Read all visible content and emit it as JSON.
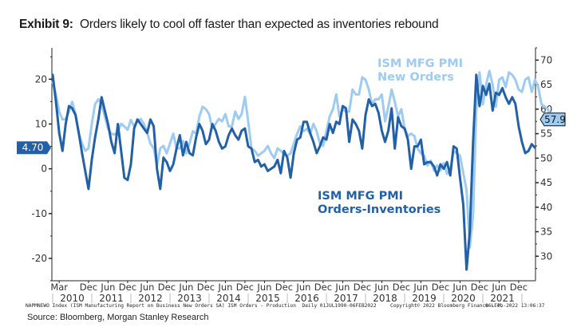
{
  "header": {
    "exhibit_label": "Exhibit 9:",
    "title": "Orders likely to cool off faster than expected as inventories rebound"
  },
  "chart_data": {
    "type": "line",
    "title": "Orders likely to cool off faster than expected as inventories rebound",
    "x_start": "2010-01",
    "x_end": "2022-01",
    "frequency": "monthly",
    "left_axis": {
      "ticks": [
        -20,
        -10,
        0,
        10,
        20
      ],
      "ylim": [
        -25,
        27
      ]
    },
    "right_axis": {
      "ticks": [
        30,
        35,
        40,
        45,
        50,
        55,
        60,
        65,
        70
      ],
      "ylim": [
        25,
        72.5
      ]
    },
    "x_tick_labels": [
      "Mar",
      "Dec",
      "Jun",
      "Dec",
      "Jun",
      "Dec",
      "Jun",
      "Dec",
      "Jun",
      "Dec",
      "Jun",
      "Dec",
      "Jun",
      "Dec",
      "Jun",
      "Dec",
      "Jun",
      "Dec",
      "Jun",
      "Dec",
      "Jun",
      "Dec",
      "Jun",
      "Dec"
    ],
    "year_labels": [
      "2010",
      "2011",
      "2012",
      "2013",
      "2014",
      "2015",
      "2016",
      "2017",
      "2018",
      "2019",
      "2020",
      "2021"
    ],
    "series": [
      {
        "name": "ISM MFG PMI New Orders",
        "axis": "right",
        "color": "#9ecbf2",
        "last_value_label": "57.9",
        "values": [
          65.5,
          63.0,
          59.5,
          57.9,
          58.0,
          59.5,
          61.5,
          59.0,
          55.0,
          53.0,
          51.5,
          52.0,
          57.0,
          61.0,
          62.0,
          61.0,
          58.5,
          56.0,
          55.0,
          54.8,
          55.5,
          57.0,
          56.5,
          55.8,
          57.8,
          56.5,
          57.5,
          58.0,
          57.0,
          55.2,
          53.0,
          52.0,
          48.5,
          52.0,
          52.5,
          51.0,
          53.0,
          55.0,
          52.0,
          52.0,
          53.5,
          51.0,
          53.0,
          55.5,
          55.0,
          58.5,
          60.5,
          60.0,
          59.0,
          56.0,
          57.0,
          58.0,
          57.5,
          59.0,
          56.5,
          56.5,
          59.5,
          58.0,
          59.0,
          62.5,
          57.5,
          52.0,
          51.5,
          50.5,
          51.0,
          51.5,
          52.5,
          51.0,
          50.0,
          52.0,
          51.5,
          50.8,
          50.5,
          51.0,
          53.0,
          55.0,
          56.5,
          55.5,
          56.0,
          55.0,
          57.0,
          55.5,
          53.0,
          52.5,
          55.5,
          58.5,
          60.0,
          63.0,
          58.5,
          60.0,
          59.5,
          59.5,
          64.0,
          63.0,
          63.0,
          66.5,
          66.0,
          64.0,
          61.0,
          62.0,
          62.0,
          63.0,
          57.5,
          60.5,
          64.0,
          61.5,
          58.5,
          60.0,
          56.0,
          54.5,
          55.0,
          54.5,
          52.0,
          51.0,
          50.5,
          48.5,
          49.5,
          47.5,
          48.5,
          47.5,
          49.0,
          46.8,
          47.5,
          51.5,
          51.0,
          50.5,
          47.0,
          43.5,
          31.8,
          38.5,
          60.0,
          67.5,
          61.0,
          65.0,
          67.8,
          65.0,
          60.5,
          66.0,
          66.5,
          64.5,
          67.5,
          67.0,
          66.0,
          64.0,
          63.5,
          66.0,
          66.5,
          63.5,
          66.0,
          64.5,
          61.0,
          60.5,
          60.0,
          57.9
        ]
      },
      {
        "name": "ISM MFG PMI Orders-Inventories",
        "axis": "left",
        "color": "#2260a8",
        "last_value_label": "4.70",
        "values": [
          21.0,
          15.0,
          8.0,
          4.0,
          10.0,
          14.0,
          13.5,
          12.0,
          8.0,
          3.5,
          -0.5,
          -4.5,
          2.0,
          7.0,
          11.0,
          16.0,
          13.0,
          10.0,
          6.0,
          3.5,
          10.0,
          4.0,
          -2.0,
          -2.5,
          1.0,
          9.0,
          11.0,
          10.0,
          9.0,
          8.0,
          11.0,
          9.5,
          0.0,
          -4.5,
          2.5,
          1.5,
          -0.5,
          1.0,
          4.5,
          7.5,
          3.0,
          6.0,
          3.5,
          3.0,
          7.0,
          10.0,
          8.5,
          5.5,
          6.5,
          10.0,
          8.5,
          6.0,
          4.5,
          5.0,
          7.5,
          9.0,
          7.5,
          6.5,
          8.5,
          9.0,
          5.0,
          4.5,
          1.5,
          2.0,
          0.5,
          1.0,
          -0.5,
          0.0,
          0.5,
          2.0,
          -1.0,
          4.0,
          2.5,
          -2.0,
          3.5,
          6.5,
          7.0,
          10.5,
          10.5,
          8.0,
          6.0,
          3.5,
          5.0,
          7.0,
          6.5,
          10.0,
          8.0,
          10.5,
          10.0,
          14.0,
          13.5,
          6.0,
          11.0,
          10.0,
          8.5,
          4.5,
          12.0,
          15.5,
          14.0,
          14.5,
          12.5,
          8.5,
          6.0,
          8.5,
          13.5,
          4.5,
          11.5,
          9.5,
          9.0,
          6.5,
          0.0,
          5.0,
          5.0,
          6.5,
          1.0,
          1.5,
          1.5,
          0.5,
          -1.5,
          1.0,
          0.0,
          1.5,
          -1.5,
          5.0,
          4.5,
          -2.0,
          -8.0,
          -22.5,
          -14.0,
          6.0,
          21.0,
          14.0,
          18.5,
          16.5,
          19.0,
          13.0,
          17.0,
          16.5,
          18.0,
          16.0,
          14.5,
          16.0,
          14.5,
          9.5,
          6.0,
          3.5,
          4.0,
          5.5,
          4.7
        ]
      }
    ],
    "annotations": [
      {
        "text_line1": "ISM MFG PMI",
        "text_line2": "New Orders",
        "color": "#9ecbf2"
      },
      {
        "text_line1": "ISM MFG PMI",
        "text_line2": "Orders-Inventories",
        "color": "#2260a8"
      }
    ]
  },
  "footer": {
    "footnote_index": "NAPMNEWO Index (ISM Manufacturing Report on Business New Orders SA) ISM Orders - Production  Daily 01JUL1990-06FEB2022",
    "copyright": "Copyright© 2022 Bloomberg Finance L.P.",
    "timestamp": "06-Feb-2022 13:06:37",
    "source": "Source: Bloomberg, Morgan Stanley Research"
  }
}
